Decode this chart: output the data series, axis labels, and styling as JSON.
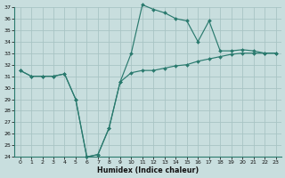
{
  "xlabel": "Humidex (Indice chaleur)",
  "x": [
    0,
    1,
    2,
    3,
    4,
    5,
    6,
    7,
    8,
    9,
    10,
    11,
    12,
    13,
    14,
    15,
    16,
    17,
    18,
    19,
    20,
    21,
    22,
    23
  ],
  "line_bottom": [
    31.5,
    31.0,
    31.0,
    31.0,
    31.2,
    29.0,
    24.0,
    24.2,
    26.5,
    30.5,
    31.3,
    31.5,
    31.5,
    31.7,
    31.9,
    32.0,
    32.3,
    32.5,
    32.7,
    32.9,
    33.0,
    33.0,
    33.0,
    33.0
  ],
  "line_top": [
    31.5,
    31.0,
    31.0,
    31.0,
    31.2,
    29.0,
    24.0,
    24.2,
    26.5,
    30.5,
    33.0,
    37.2,
    36.8,
    36.5,
    36.0,
    35.8,
    34.0,
    35.8,
    33.2,
    33.2,
    33.3,
    33.2,
    33.0,
    33.0
  ],
  "line_color": "#2a7a6e",
  "bg_color": "#c8dede",
  "grid_color": "#a8c4c4",
  "ylim": [
    24,
    37
  ],
  "xlim": [
    -0.5,
    23.5
  ],
  "yticks": [
    24,
    25,
    26,
    27,
    28,
    29,
    30,
    31,
    32,
    33,
    34,
    35,
    36,
    37
  ],
  "xticks": [
    0,
    1,
    2,
    3,
    4,
    5,
    6,
    7,
    8,
    9,
    10,
    11,
    12,
    13,
    14,
    15,
    16,
    17,
    18,
    19,
    20,
    21,
    22,
    23
  ],
  "tick_fontsize": 4.5,
  "xlabel_fontsize": 5.8
}
